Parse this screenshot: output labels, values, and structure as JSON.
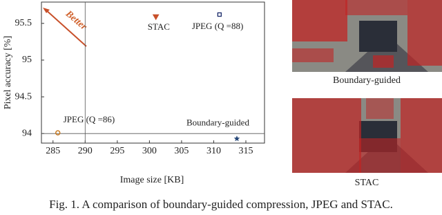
{
  "chart_data": {
    "type": "scatter",
    "xlabel": "Image size [KB]",
    "ylabel": "Pixel accuracy [%]",
    "xlim": [
      283.2,
      317.9
    ],
    "ylim": [
      93.87,
      95.79
    ],
    "xticks": [
      285,
      290,
      295,
      300,
      305,
      310,
      315
    ],
    "yticks": [
      94,
      94.5,
      95,
      95.5
    ],
    "vlines": [
      290
    ],
    "hlines": [
      94
    ],
    "annotation": "Better",
    "series": [
      {
        "name": "JPEG (Q =86)",
        "marker": "circle",
        "color": "#c87a20",
        "x": [
          285.75
        ],
        "values": [
          94.01
        ]
      },
      {
        "name": "STAC",
        "marker": "triangle-down",
        "color": "#c8502a",
        "x": [
          301.0
        ],
        "values": [
          95.59
        ]
      },
      {
        "name": "JPEG (Q =88)",
        "marker": "square",
        "color": "#1a2a6a",
        "x": [
          310.9
        ],
        "values": [
          95.62
        ]
      },
      {
        "name": "Boundary-guided",
        "marker": "star",
        "color": "#2a4a7a",
        "x": [
          313.6
        ],
        "values": [
          93.93
        ]
      }
    ]
  },
  "images": [
    {
      "caption": "Boundary-guided"
    },
    {
      "caption": "STAC"
    }
  ],
  "caption": "Fig. 1.  A comparison of boundary-guided compression, JPEG and STAC."
}
